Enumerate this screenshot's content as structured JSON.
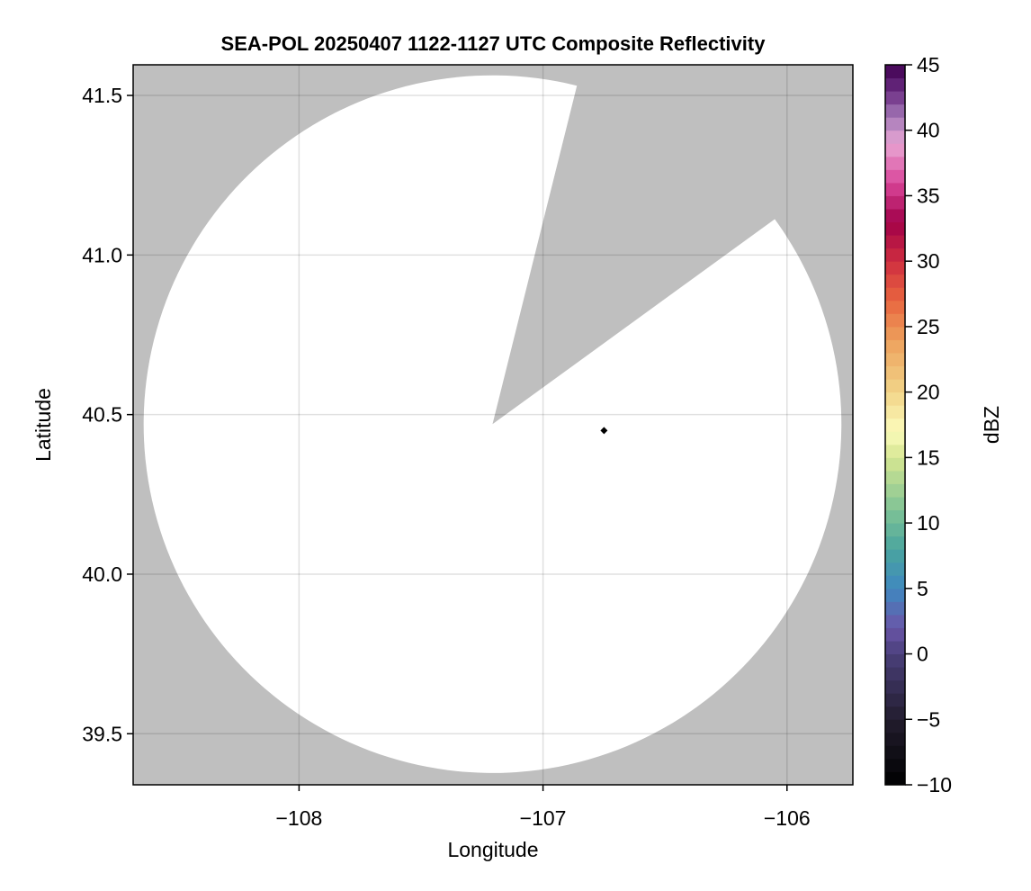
{
  "chart_data": {
    "type": "heatmap",
    "title": "SEA-POL 20250407 1122-1127 UTC Composite Reflectivity",
    "xlabel": "Longitude",
    "ylabel": "Latitude",
    "xlim": [
      -108.68,
      -105.73
    ],
    "ylim": [
      39.34,
      41.596
    ],
    "xticks": [
      -108,
      -107,
      -106
    ],
    "xtick_labels": [
      "−108",
      "−107",
      "−106"
    ],
    "yticks": [
      39.5,
      40.0,
      40.5,
      41.0,
      41.5
    ],
    "ytick_labels": [
      "39.5",
      "40.0",
      "40.5",
      "41.0",
      "41.5"
    ],
    "grid": true,
    "background_color": "#bfbfbf",
    "coverage_color": "#ffffff",
    "radar_coverage": {
      "center_lon": -107.207,
      "center_lat": 40.47,
      "radius_lon_deg": 1.43,
      "radius_lat_deg": 1.093,
      "blocked_sector_azimuth_deg": [
        14,
        54
      ]
    },
    "marker": {
      "lon": -106.75,
      "lat": 40.45,
      "color": "#000000"
    },
    "colorbar": {
      "label": "dBZ",
      "range": [
        -10,
        45
      ],
      "step": 1,
      "ticks": [
        -10,
        -5,
        0,
        5,
        10,
        15,
        20,
        25,
        30,
        35,
        40,
        45
      ],
      "tick_labels": [
        "−10",
        "−5",
        "0",
        "5",
        "10",
        "15",
        "20",
        "25",
        "30",
        "35",
        "40",
        "45"
      ],
      "colormap_stops": [
        [
          -10,
          "#000000"
        ],
        [
          -5,
          "#221d2e"
        ],
        [
          0,
          "#4a3f7a"
        ],
        [
          2,
          "#6a55a8"
        ],
        [
          5,
          "#3f88c0"
        ],
        [
          8,
          "#4aa59e"
        ],
        [
          11,
          "#7fc395"
        ],
        [
          15,
          "#d6e692"
        ],
        [
          17,
          "#fbfbbb"
        ],
        [
          20,
          "#f2d488"
        ],
        [
          24,
          "#eda05c"
        ],
        [
          27,
          "#e8653f"
        ],
        [
          30,
          "#cf2e40"
        ],
        [
          33,
          "#a10048"
        ],
        [
          36,
          "#d9469a"
        ],
        [
          39,
          "#e9a6d4"
        ],
        [
          41,
          "#a57ab8"
        ],
        [
          43,
          "#6b2d82"
        ],
        [
          45,
          "#400050"
        ]
      ]
    }
  }
}
